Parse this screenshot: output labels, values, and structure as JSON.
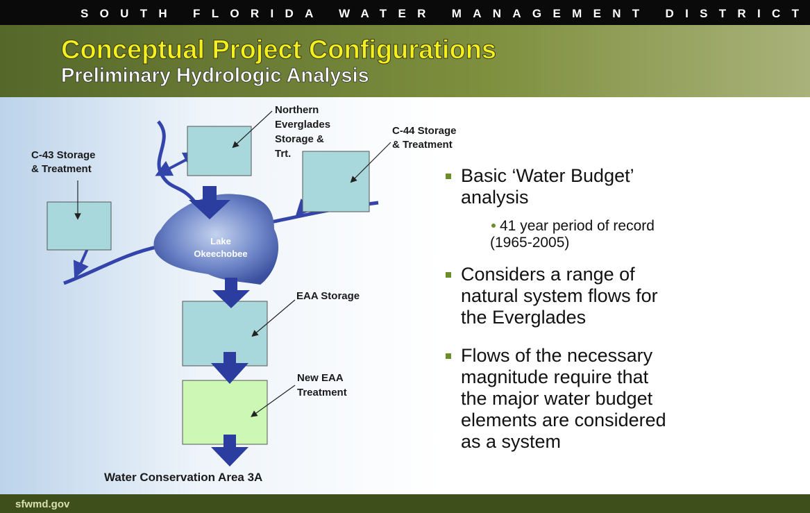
{
  "header": {
    "org": "SOUTH FLORIDA WATER MANAGEMENT DISTRICT",
    "title": "Conceptual Project Configurations",
    "subtitle": "Preliminary Hydrologic Analysis"
  },
  "diagram": {
    "northern": [
      "Northern",
      "Everglades",
      "Storage &",
      "Trt."
    ],
    "c44": [
      "C-44 Storage",
      "& Treatment"
    ],
    "c43": [
      "C-43 Storage",
      "& Treatment"
    ],
    "lake": [
      "Lake",
      "Okeechobee"
    ],
    "eaa_storage": "EAA Storage",
    "eaa_treatment": [
      "New EAA",
      "Treatment"
    ],
    "wca": "Water Conservation Area 3A"
  },
  "bullets": [
    {
      "lines": [
        "Basic ‘Water Budget’",
        "analysis"
      ],
      "sub": [
        "41 year period of record",
        "(1965-2005)"
      ]
    },
    {
      "lines": [
        "Considers a range of",
        "natural system flows for",
        "the Everglades"
      ]
    },
    {
      "lines": [
        "Flows of the necessary",
        "magnitude require that",
        "the major water budget",
        "elements are considered",
        "as a system"
      ]
    }
  ],
  "footer": "sfwmd.gov"
}
